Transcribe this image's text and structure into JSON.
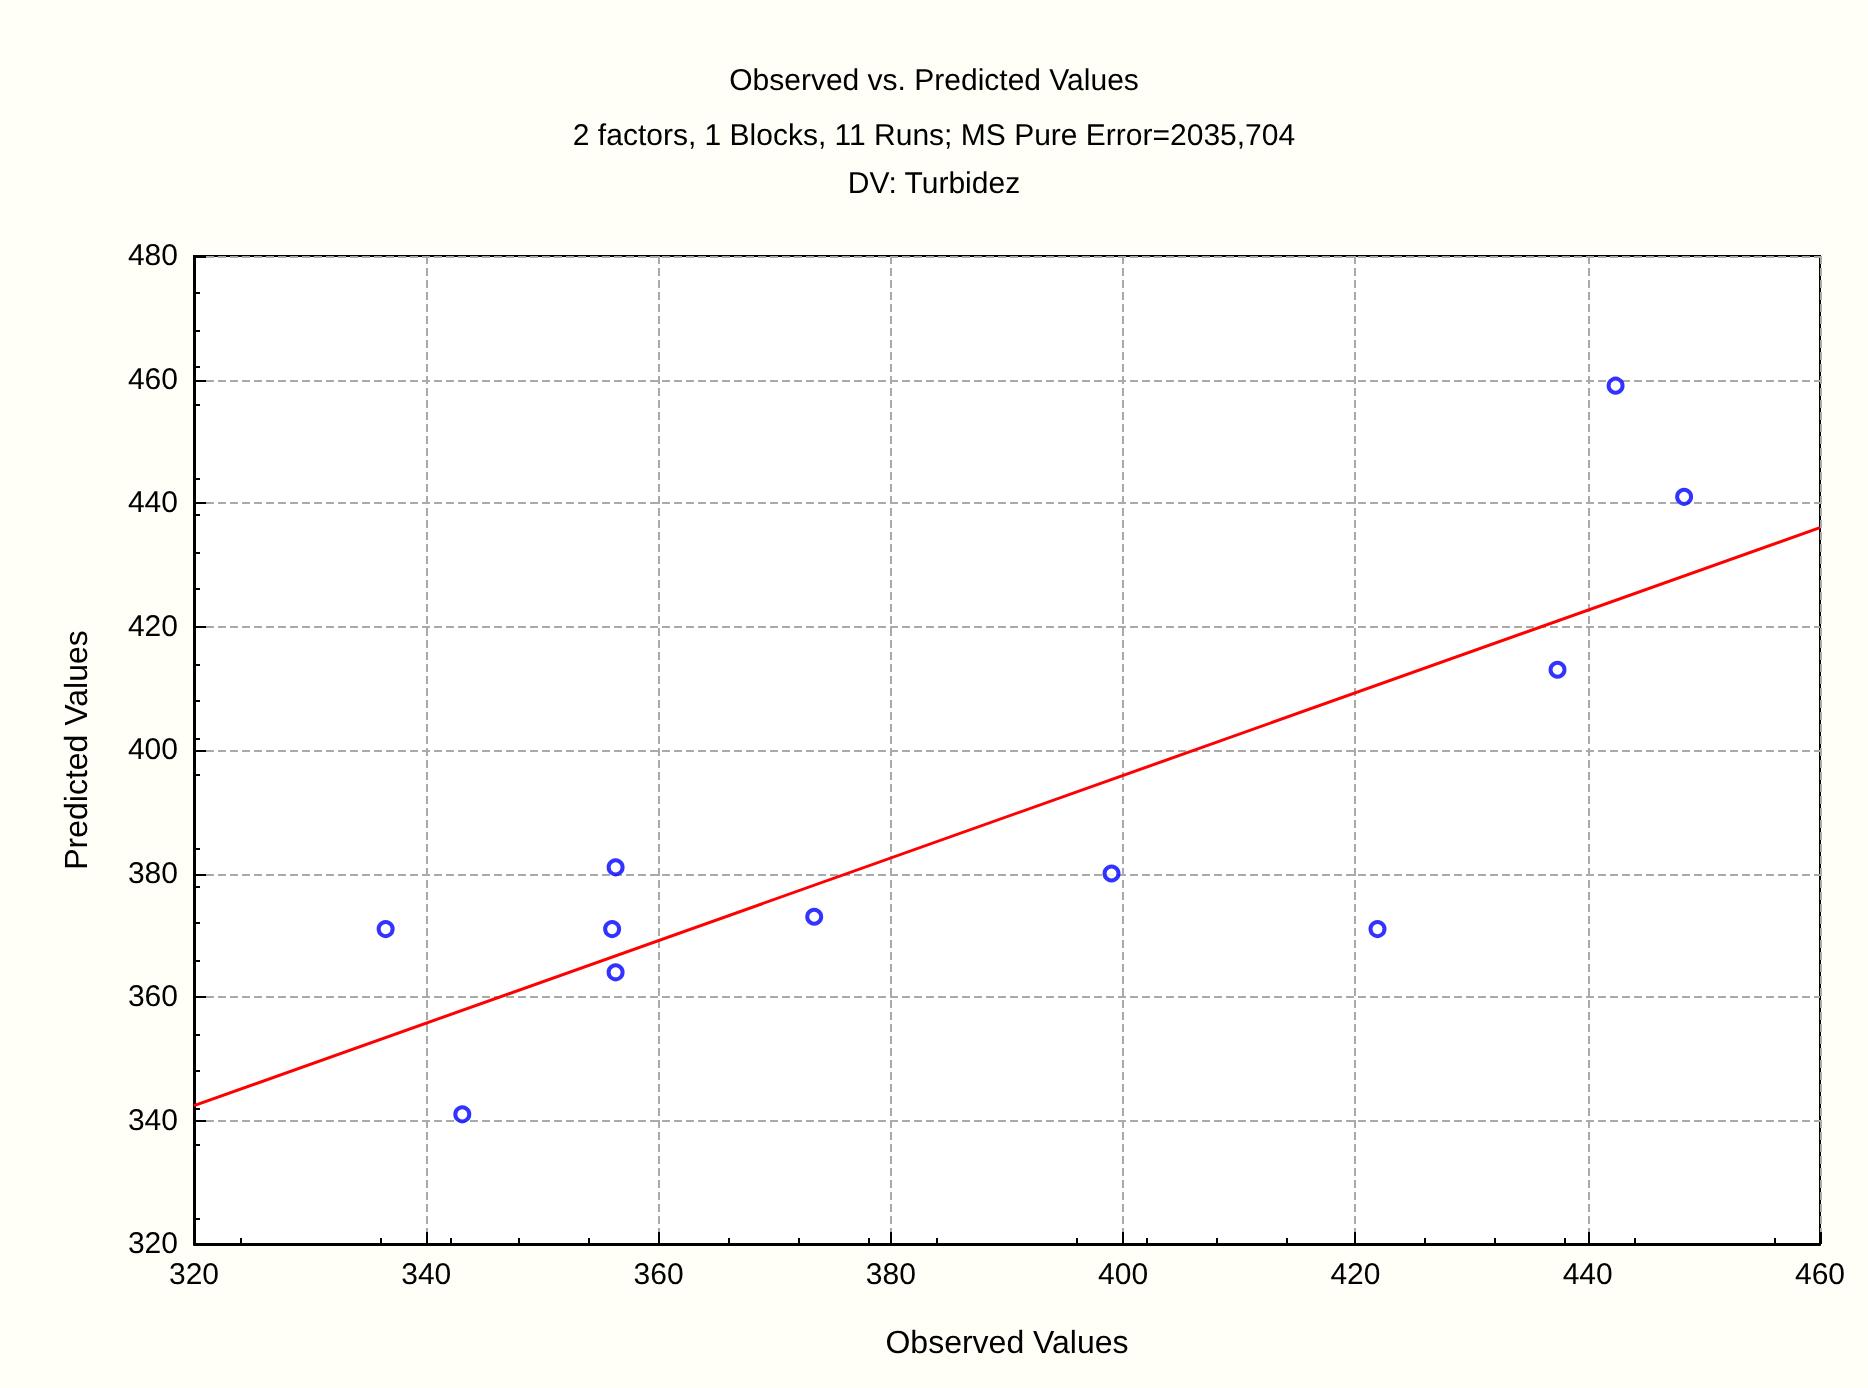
{
  "chart_data": {
    "type": "scatter",
    "title": "Observed vs. Predicted Values",
    "subtitle": "2 factors, 1 Blocks, 11 Runs; MS Pure Error=2035,704\nDV: Turbidez",
    "xlabel": "Observed Values",
    "ylabel": "Predicted Values",
    "series": [
      {
        "color": "#0000ff",
        "marker": "circle",
        "x": [
          336.5,
          343.1,
          356.3,
          356.0,
          356.3,
          373.4,
          399.0,
          421.9,
          437.4,
          442.4,
          448.3
        ],
        "values": [
          371,
          341,
          381,
          371,
          364,
          373,
          380,
          371,
          413,
          459,
          441
        ]
      },
      {
        "type": "line",
        "color": "#ff0000",
        "marker": "none",
        "line_style": "solid",
        "x": [
          320,
          460
        ],
        "values": [
          342.4,
          436
        ]
      }
    ],
    "xlim": [
      320,
      460
    ],
    "xticks": [
      320,
      340,
      360,
      380,
      400,
      420,
      440,
      460
    ],
    "ylim": [
      320,
      480
    ],
    "yticks": [
      320,
      340,
      360,
      380,
      400,
      420,
      440,
      460,
      480
    ],
    "grid": true
  }
}
